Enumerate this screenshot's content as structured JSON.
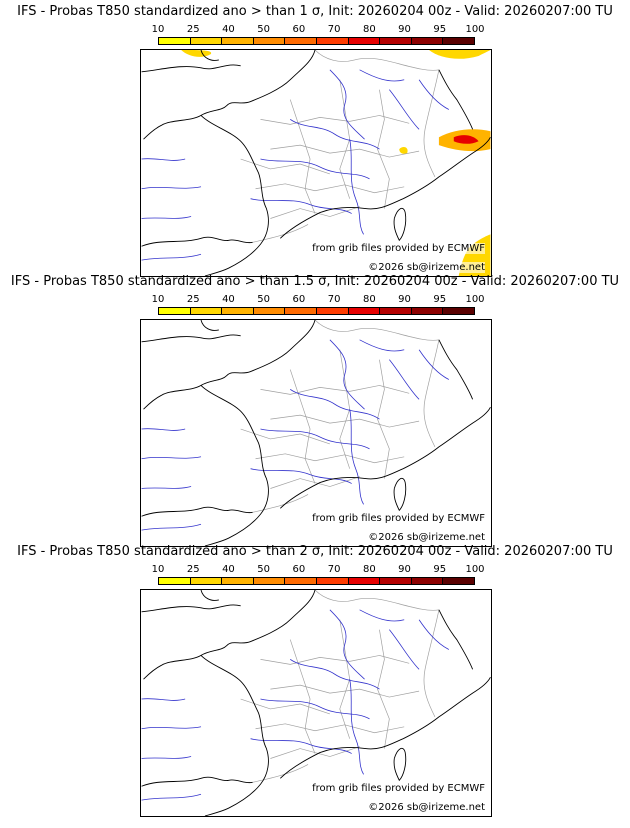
{
  "colorbar": {
    "ticks": [
      "10",
      "25",
      "40",
      "50",
      "60",
      "70",
      "80",
      "90",
      "95",
      "100"
    ],
    "colors": [
      "#ffff00",
      "#ffd700",
      "#ffb300",
      "#ff8c00",
      "#ff6a00",
      "#ff3c00",
      "#e60000",
      "#b40000",
      "#8c0000",
      "#5a0000"
    ]
  },
  "colors": {
    "rivers": "#3333cc",
    "borders": "#a0a0a0",
    "coast": "#000000"
  },
  "panels": [
    {
      "title": "IFS - Probas T850  standardized ano > than 1 σ, Init: 20260204 00z - Valid: 20260207:00 TU",
      "credit_grib": "from grib files provided by ECMWF",
      "credit_copy": "©2026 sb@irizeme.net"
    },
    {
      "title": "IFS - Probas T850  standardized ano > than 1.5 σ, Init: 20260204 00z - Valid: 20260207:00 TU",
      "credit_grib": "from grib files provided by ECMWF",
      "credit_copy": "©2026 sb@irizeme.net"
    },
    {
      "title": "IFS - Probas T850  standardized ano > than 2 σ, Init: 20260204 00z - Valid: 20260207:00 TU",
      "credit_grib": "from grib files provided by ECMWF",
      "credit_copy": "©2026 sb@irizeme.net"
    }
  ]
}
